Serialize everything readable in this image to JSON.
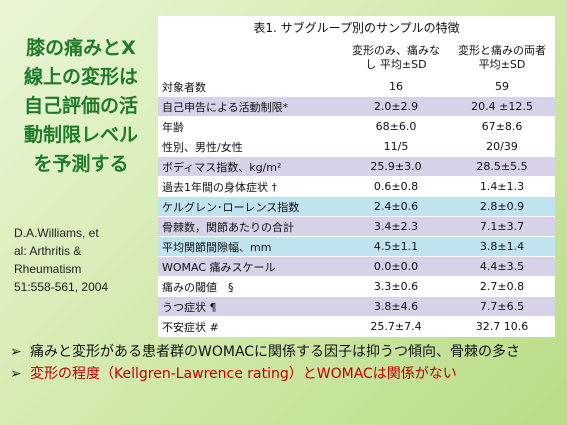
{
  "title_lines": [
    "膝の痛みとX",
    "線上の変形は",
    "自己評価の活",
    "動制限レベル",
    "を予測する"
  ],
  "citation_lines": [
    "D.A.Williams, et",
    "al: Arthritis &",
    "Rheumatism",
    "51:558-561, 2004"
  ],
  "table": {
    "caption": "表1. サブグループ別のサンプルの特徴",
    "col1_header": "変形のみ、痛みなし 平均±SD",
    "col2_header": "変形と痛みの両者　平均±SD",
    "rows": [
      {
        "label": "対象者数",
        "v1": "16",
        "v2": "59"
      },
      {
        "label": "自己申告による活動制限*",
        "v1": "2.0±2.9",
        "v2": "20.4 ±12.5"
      },
      {
        "label": "年齢",
        "v1": "68±6.0",
        "v2": "67±8.6"
      },
      {
        "label": "性別、男性/女性",
        "v1": "11/5",
        "v2": "20/39"
      },
      {
        "label": "ボディマス指数、kg/m²",
        "v1": "25.9±3.0",
        "v2": "28.5±5.5"
      },
      {
        "label": "過去1年間の身体症状 †",
        "v1": "0.6±0.8",
        "v2": "1.4±1.3"
      },
      {
        "label": "ケルグレン･ローレンス指数",
        "v1": "2.4±0.6",
        "v2": "2.8±0.9"
      },
      {
        "label": "骨棘数，関節あたりの合計",
        "v1": "3.4±2.3",
        "v2": "7.1±3.7"
      },
      {
        "label": "平均関節間隙幅、mm",
        "v1": "4.5±1.1",
        "v2": "3.8±1.4"
      },
      {
        "label": "WOMAC 痛みスケール",
        "v1": "0.0±0.0",
        "v2": "4.4±3.5"
      },
      {
        "label": "痛みの閾値　§",
        "v1": "3.3±0.6",
        "v2": "2.7±0.8"
      },
      {
        "label": "うつ症状 ¶",
        "v1": "3.8±4.6",
        "v2": "7.7±6.5"
      },
      {
        "label": "不安症状 #",
        "v1": "25.7±7.4",
        "v2": "32.7 10.6"
      }
    ]
  },
  "bullets": [
    {
      "marker": "➢",
      "text": "痛みと変形がある患者群のWOMACに関係する因子は抑うつ傾向、骨棘の多さ"
    },
    {
      "marker": "➢",
      "text": "変形の程度（Kellgren-Lawrence rating）とWOMACは関係がない"
    }
  ],
  "colors": {
    "title": "#1f7a2a",
    "bullet2": "#c00000",
    "row_purple": "#d7d1ea",
    "row_cyan": "#bfe3ef"
  }
}
